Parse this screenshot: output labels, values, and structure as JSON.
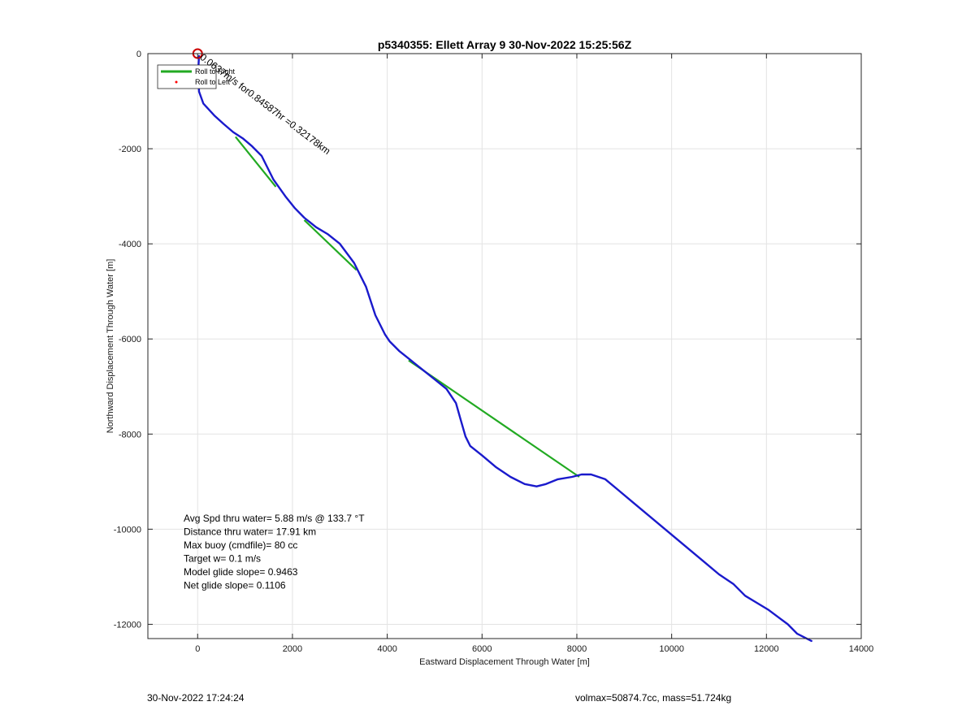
{
  "footer": {
    "left": "30-Nov-2022 17:24:24",
    "right": "volmax=50874.7cc, mass=51.724kg"
  },
  "chart_data": {
    "type": "line",
    "title": "p5340355: Ellett Array 9 30-Nov-2022 15:25:56Z",
    "xlabel": "Eastward Displacement Through Water [m]",
    "ylabel": "Northward Displacement Through Water [m]",
    "xlim": [
      -1050,
      14000
    ],
    "ylim": [
      -12300,
      0
    ],
    "xticks": [
      0,
      2000,
      4000,
      6000,
      8000,
      10000,
      12000,
      14000
    ],
    "yticks": [
      0,
      -2000,
      -4000,
      -6000,
      -8000,
      -10000,
      -12000
    ],
    "grid": true,
    "legend": {
      "placement": "top-left",
      "entries": [
        {
          "label": "Roll to Right",
          "color": "#22aa22",
          "style": "line"
        },
        {
          "label": "Roll to Left",
          "color": "#ff0000",
          "style": "dot"
        }
      ]
    },
    "series": [
      {
        "name": "Roll to Right",
        "color": "#22aa22",
        "segments": [
          {
            "x": [
              800,
              1650
            ],
            "y": [
              -1750,
              -2800
            ]
          },
          {
            "x": [
              2250,
              3350
            ],
            "y": [
              -3500,
              -4550
            ]
          },
          {
            "x": [
              4450,
              8050
            ],
            "y": [
              -6450,
              -8900
            ]
          }
        ]
      },
      {
        "name": "track",
        "color": "#1a1acc",
        "x": [
          30,
          10,
          30,
          120,
          350,
          550,
          750,
          950,
          1150,
          1350,
          1600,
          1850,
          2050,
          2250,
          2500,
          2750,
          3000,
          3300,
          3550,
          3750,
          3950,
          4050,
          4250,
          4500,
          4750,
          5000,
          5250,
          5450,
          5550,
          5650,
          5750,
          6000,
          6300,
          6600,
          6900,
          7150,
          7350,
          7600,
          7900,
          8100,
          8300,
          8600,
          8900,
          9200,
          9500,
          9800,
          10100,
          10400,
          10700,
          11000,
          11300,
          11550,
          11800,
          12050,
          12250,
          12450,
          12650,
          12950
        ],
        "y": [
          -50,
          -400,
          -800,
          -1050,
          -1300,
          -1480,
          -1650,
          -1780,
          -1950,
          -2150,
          -2650,
          -3000,
          -3250,
          -3450,
          -3650,
          -3800,
          -4000,
          -4400,
          -4900,
          -5500,
          -5900,
          -6050,
          -6250,
          -6450,
          -6650,
          -6850,
          -7050,
          -7350,
          -7700,
          -8050,
          -8250,
          -8450,
          -8700,
          -8900,
          -9050,
          -9100,
          -9050,
          -8950,
          -8900,
          -8850,
          -8850,
          -8950,
          -9200,
          -9450,
          -9700,
          -9950,
          -10200,
          -10450,
          -10700,
          -10950,
          -11150,
          -11400,
          -11550,
          -11700,
          -11850,
          -12000,
          -12200,
          -12350
        ]
      }
    ],
    "start_marker": {
      "x": 0,
      "y": 0,
      "color": "#cc0000"
    },
    "annotation": {
      "text": "0.0637m/s for0.84587hr =0.32178km",
      "x": 0,
      "y": 0,
      "angle": 37
    },
    "stats": [
      "Avg Spd thru water=  5.88 m/s @ 133.7 °T",
      "Distance thru water= 17.91 km",
      "Max buoy (cmdfile)= 80 cc",
      "Target w= 0.1 m/s",
      "Model glide slope= 0.9463",
      "Net glide slope= 0.1106"
    ]
  }
}
